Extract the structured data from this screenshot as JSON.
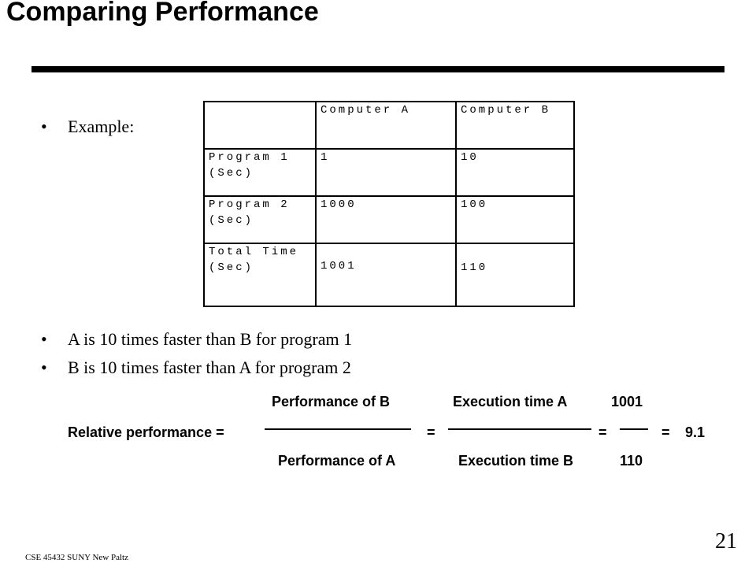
{
  "slide": {
    "title": "Comparing Performance",
    "page_number": "21",
    "footer": "CSE 45432  SUNY New Paltz"
  },
  "bullets": {
    "example": "Example:",
    "line1": "A is 10 times faster than B for program 1",
    "line2": "B is 10 times  faster than A for  program  2"
  },
  "table": {
    "header": [
      "",
      "Computer A",
      "Computer B"
    ],
    "rows": [
      [
        "Program 1\n(Sec)",
        "1",
        "10"
      ],
      [
        "Program 2\n(Sec)",
        "1000",
        "100"
      ],
      [
        "Total Time\n(Sec)",
        "1001",
        "110"
      ]
    ]
  },
  "formula": {
    "label": "Relative performance =",
    "num1": "Performance of B",
    "den1": "Performance of A",
    "num2": "Execution time A",
    "den2": "Execution time B",
    "num3": "1001",
    "den3": "110",
    "eq": "=",
    "result": "9.1"
  }
}
